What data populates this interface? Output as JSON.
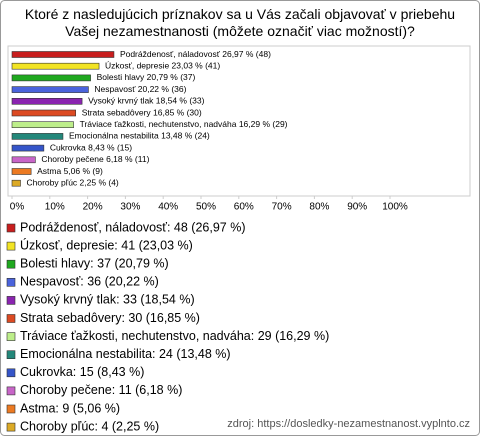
{
  "chart_data": {
    "type": "bar",
    "orientation": "horizontal",
    "title": "Ktoré z nasledujúcich príznakov sa u Vás začali objavovať v priebehu Vašej nezamestnanosti (môžete označiť viac možností)?",
    "categories": [
      "Podráždenosť, náladovosť",
      "Úzkosť, depresie",
      "Bolesti hlavy",
      "Nespavosť",
      "Vysoký krvný tlak",
      "Strata sebadôvery",
      "Tráviace ťažkosti, nechutenstvo, nadváha",
      "Emocionálna nestabilita",
      "Cukrovka",
      "Choroby pečene",
      "Astma",
      "Choroby pľúc"
    ],
    "values": [
      26.97,
      23.03,
      20.79,
      20.22,
      18.54,
      16.85,
      16.29,
      13.48,
      8.43,
      6.18,
      5.06,
      2.25
    ],
    "counts": [
      48,
      41,
      37,
      36,
      33,
      30,
      29,
      24,
      15,
      11,
      9,
      4
    ],
    "value_labels": [
      "Podráždenosť, náladovosť 26,97 % (48)",
      "Úzkosť, depresie 23,03 % (41)",
      "Bolesti hlavy 20,79 % (37)",
      "Nespavosť 20,22 % (36)",
      "Vysoký krvný tlak 18,54 % (33)",
      "Strata sebadôvery 16,85 % (30)",
      "Tráviace ťažkosti, nechutenstvo, nadváha 16,29 % (29)",
      "Emocionálna nestabilita 13,48 % (24)",
      "Cukrovka 8,43 % (15)",
      "Choroby pečene 6,18 % (11)",
      "Astma 5,06 % (9)",
      "Choroby pľúc 2,25 % (4)"
    ],
    "legend_labels": [
      "Podráždenosť, náladovosť: 48 (26,97 %)",
      "Úzkosť, depresie: 41 (23,03 %)",
      "Bolesti hlavy: 37 (20,79 %)",
      "Nespavosť: 36 (20,22 %)",
      "Vysoký krvný tlak: 33 (18,54 %)",
      "Strata sebadôvery: 30 (16,85 %)",
      "Tráviace ťažkosti, nechutenstvo, nadváha: 29 (16,29 %)",
      "Emocionálna nestabilita: 24 (13,48 %)",
      "Cukrovka: 15 (8,43 %)",
      "Choroby pečene: 11 (6,18 %)",
      "Astma: 9 (5,06 %)",
      "Choroby pľúc: 4 (2,25 %)"
    ],
    "colors": [
      "#c81e1e",
      "#f2e424",
      "#1fa81f",
      "#4a63dc",
      "#8a24b0",
      "#dc4a22",
      "#bdee8a",
      "#23877a",
      "#3555c9",
      "#c865c8",
      "#ec7a22",
      "#dcaa26"
    ],
    "xlim": [
      0,
      100
    ],
    "xticks": [
      {
        "value": 0,
        "label": "0%"
      },
      {
        "value": 10,
        "label": "10%"
      },
      {
        "value": 20,
        "label": "20%"
      },
      {
        "value": 30,
        "label": "30%"
      },
      {
        "value": 40,
        "label": "40%"
      },
      {
        "value": 50,
        "label": "50%"
      },
      {
        "value": 60,
        "label": "60%"
      },
      {
        "value": 70,
        "label": "70%"
      },
      {
        "value": 80,
        "label": "80%"
      },
      {
        "value": 90,
        "label": "90%"
      },
      {
        "value": 100,
        "label": "100%"
      }
    ],
    "grid": false,
    "source": "zdroj: https://dosledky-nezamestnanost.vyplnto.cz"
  }
}
